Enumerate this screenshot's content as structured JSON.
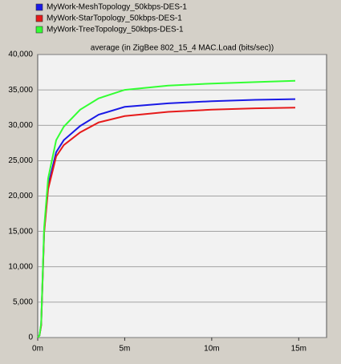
{
  "chart_data": {
    "type": "line",
    "title": "average (in ZigBee 802_15_4 MAC.Load (bits/sec))",
    "x": [
      0,
      0.1,
      0.2,
      0.37,
      0.6,
      1.06,
      1.5,
      2.44,
      3.5,
      5,
      7.5,
      10,
      12.5,
      14.8
    ],
    "series": [
      {
        "name": "MyWork-MeshTopology_50kbps-DES-1",
        "color": "#1a1ae6",
        "values": [
          0,
          300,
          1800,
          15000,
          21500,
          26200,
          27900,
          29900,
          31500,
          32600,
          33100,
          33400,
          33600,
          33700
        ]
      },
      {
        "name": "MyWork-StarTopology_50kbps-DES-1",
        "color": "#e61a1a",
        "values": [
          0,
          300,
          1700,
          14800,
          21000,
          25600,
          27200,
          29000,
          30400,
          31300,
          31900,
          32200,
          32400,
          32500
        ]
      },
      {
        "name": "MyWork-TreeTopology_50kbps-DES-1",
        "color": "#33ff33",
        "values": [
          0,
          300,
          2000,
          15500,
          22500,
          27900,
          29800,
          32200,
          33800,
          35000,
          35600,
          35900,
          36100,
          36300
        ]
      }
    ],
    "xlim": [
      0,
      16.6
    ],
    "xticks": [
      {
        "value": 0,
        "label": "0m"
      },
      {
        "value": 5,
        "label": "5m"
      },
      {
        "value": 10,
        "label": "10m"
      },
      {
        "value": 15,
        "label": "15m"
      }
    ],
    "ylim": [
      0,
      40000
    ],
    "yticks": [
      0,
      {
        "value": 5000,
        "label": "5,000"
      },
      {
        "value": 10000,
        "label": "10,000"
      },
      {
        "value": 15000,
        "label": "15,000"
      },
      {
        "value": 20000,
        "label": "20,000"
      },
      {
        "value": 25000,
        "label": "25,000"
      },
      {
        "value": 30000,
        "label": "30,000"
      },
      {
        "value": 35000,
        "label": "35,000"
      },
      {
        "value": 40000,
        "label": "40,000"
      }
    ],
    "grid": true
  }
}
